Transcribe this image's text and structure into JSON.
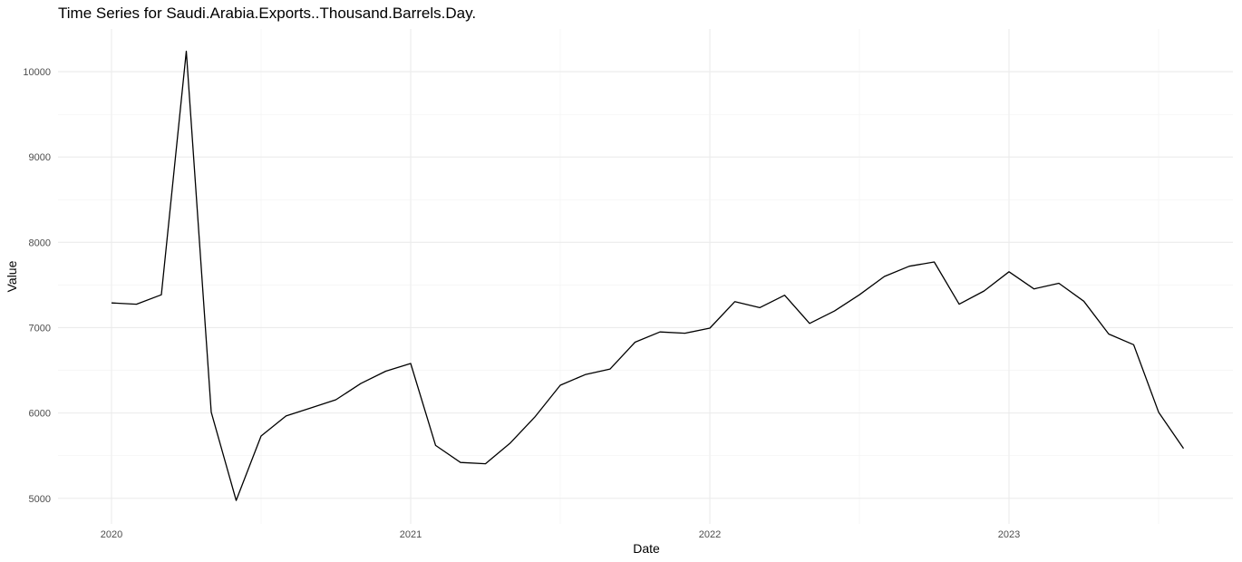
{
  "chart_data": {
    "type": "line",
    "title": "Time Series for Saudi.Arabia.Exports..Thousand.Barrels.Day.",
    "xlabel": "Date",
    "ylabel": "Value",
    "x_tick_labels": [
      "2020",
      "2021",
      "2022",
      "2023"
    ],
    "y_tick_labels": [
      "5000",
      "6000",
      "7000",
      "8000",
      "9000",
      "10000"
    ],
    "ylim": [
      4700,
      10500
    ],
    "grid": true,
    "series": [
      {
        "x": [
          "2020-01",
          "2020-02",
          "2020-03",
          "2020-04",
          "2020-05",
          "2020-06",
          "2020-07",
          "2020-08",
          "2020-09",
          "2020-10",
          "2020-11",
          "2020-12",
          "2021-01",
          "2021-02",
          "2021-03",
          "2021-04",
          "2021-05",
          "2021-06",
          "2021-07",
          "2021-08",
          "2021-09",
          "2021-10",
          "2021-11",
          "2021-12",
          "2022-01",
          "2022-02",
          "2022-03",
          "2022-04",
          "2022-05",
          "2022-06",
          "2022-07",
          "2022-08",
          "2022-09",
          "2022-10",
          "2022-11",
          "2022-12",
          "2023-01",
          "2023-02",
          "2023-03",
          "2023-04",
          "2023-05",
          "2023-06",
          "2023-07",
          "2023-08"
        ],
        "values": [
          7290,
          7275,
          7385,
          10240,
          6010,
          4975,
          5730,
          5965,
          6060,
          6155,
          6345,
          6490,
          6580,
          5620,
          5420,
          5405,
          5650,
          5960,
          6325,
          6450,
          6515,
          6830,
          6950,
          6935,
          6995,
          7305,
          7235,
          7380,
          7050,
          7195,
          7385,
          7600,
          7720,
          7770,
          7275,
          7430,
          7655,
          7455,
          7520,
          7310,
          6925,
          6800,
          6010,
          5585
        ]
      }
    ]
  }
}
